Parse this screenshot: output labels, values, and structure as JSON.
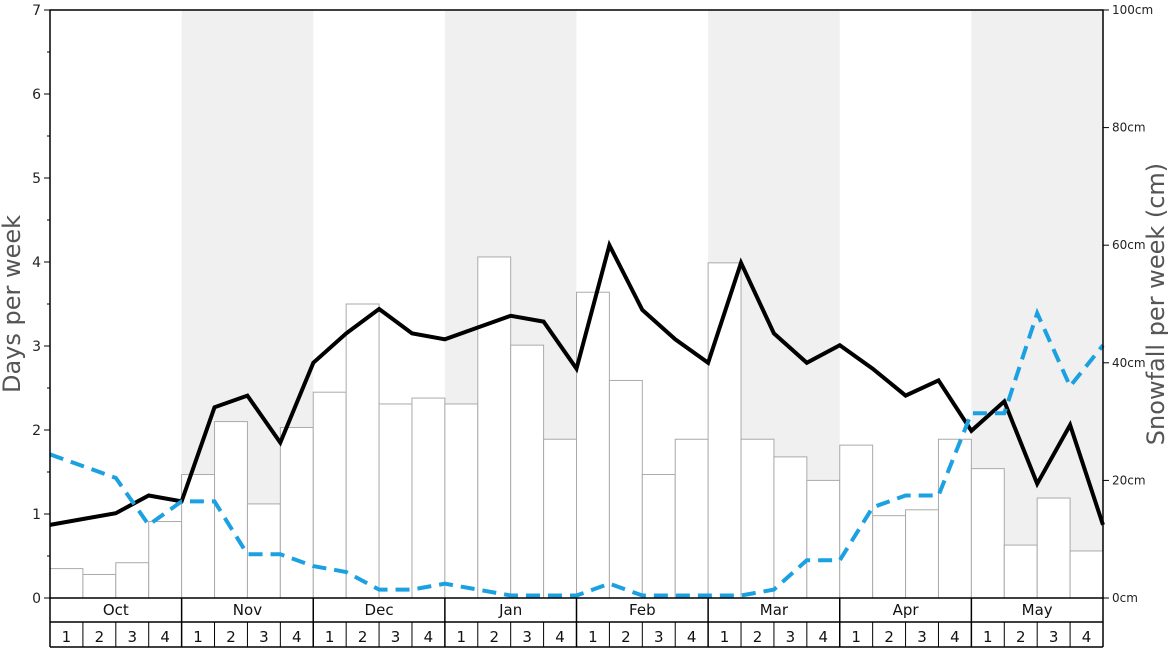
{
  "chart_data": {
    "type": "bar+line",
    "left_axis": {
      "label": "Days per week",
      "ylim": [
        0,
        7
      ],
      "ticks": [
        "0",
        "1",
        "2",
        "3",
        "4",
        "5",
        "6",
        "7"
      ]
    },
    "right_axis": {
      "label": "Snowfall per week (cm)",
      "ylim": [
        0,
        100
      ],
      "ticks": [
        "0cm",
        "20cm",
        "40cm",
        "60cm",
        "80cm",
        "100cm"
      ],
      "tick_values": [
        0,
        20,
        40,
        60,
        80,
        100
      ]
    },
    "months": [
      "Oct",
      "Nov",
      "Dec",
      "Jan",
      "Feb",
      "Mar",
      "Apr",
      "May"
    ],
    "weeks": [
      "1",
      "2",
      "3",
      "4"
    ],
    "shaded_months": [
      false,
      true,
      false,
      true,
      false,
      true,
      false,
      true
    ],
    "colors": {
      "bar_fill": "#ffffff",
      "bar_stroke": "#aaaaaa",
      "shade": "#f0f0f0",
      "solid_line": "#000000",
      "dashed_line": "#1ba1e2"
    },
    "series": [
      {
        "type": "bar",
        "axis": "right",
        "values": [
          5,
          4,
          6,
          13,
          21,
          30,
          16,
          29,
          35,
          50,
          33,
          34,
          33,
          58,
          43,
          27,
          52,
          37,
          21,
          27,
          57,
          27,
          24,
          20,
          26,
          14,
          15,
          27,
          22,
          9,
          17,
          8
        ]
      },
      {
        "type": "line",
        "style": "solid",
        "axis": "left",
        "values": [
          0.87,
          0.94,
          1.01,
          1.22,
          1.15,
          2.27,
          2.41,
          1.85,
          2.8,
          3.15,
          3.44,
          3.15,
          3.08,
          3.22,
          3.36,
          3.29,
          2.73,
          4.2,
          3.43,
          3.08,
          2.8,
          3.99,
          3.15,
          2.8,
          3.01,
          2.73,
          2.41,
          2.59,
          1.99,
          2.34,
          1.36,
          2.06,
          0.87
        ]
      },
      {
        "type": "line",
        "style": "dashed",
        "axis": "left",
        "values": [
          1.71,
          1.57,
          1.43,
          0.87,
          1.15,
          1.15,
          0.52,
          0.52,
          0.38,
          0.31,
          0.1,
          0.1,
          0.17,
          0.1,
          0.03,
          0.03,
          0.03,
          0.17,
          0.03,
          0.03,
          0.03,
          0.03,
          0.1,
          0.45,
          0.45,
          1.08,
          1.22,
          1.22,
          2.2,
          2.2,
          3.39,
          2.52,
          3.01
        ]
      }
    ]
  }
}
